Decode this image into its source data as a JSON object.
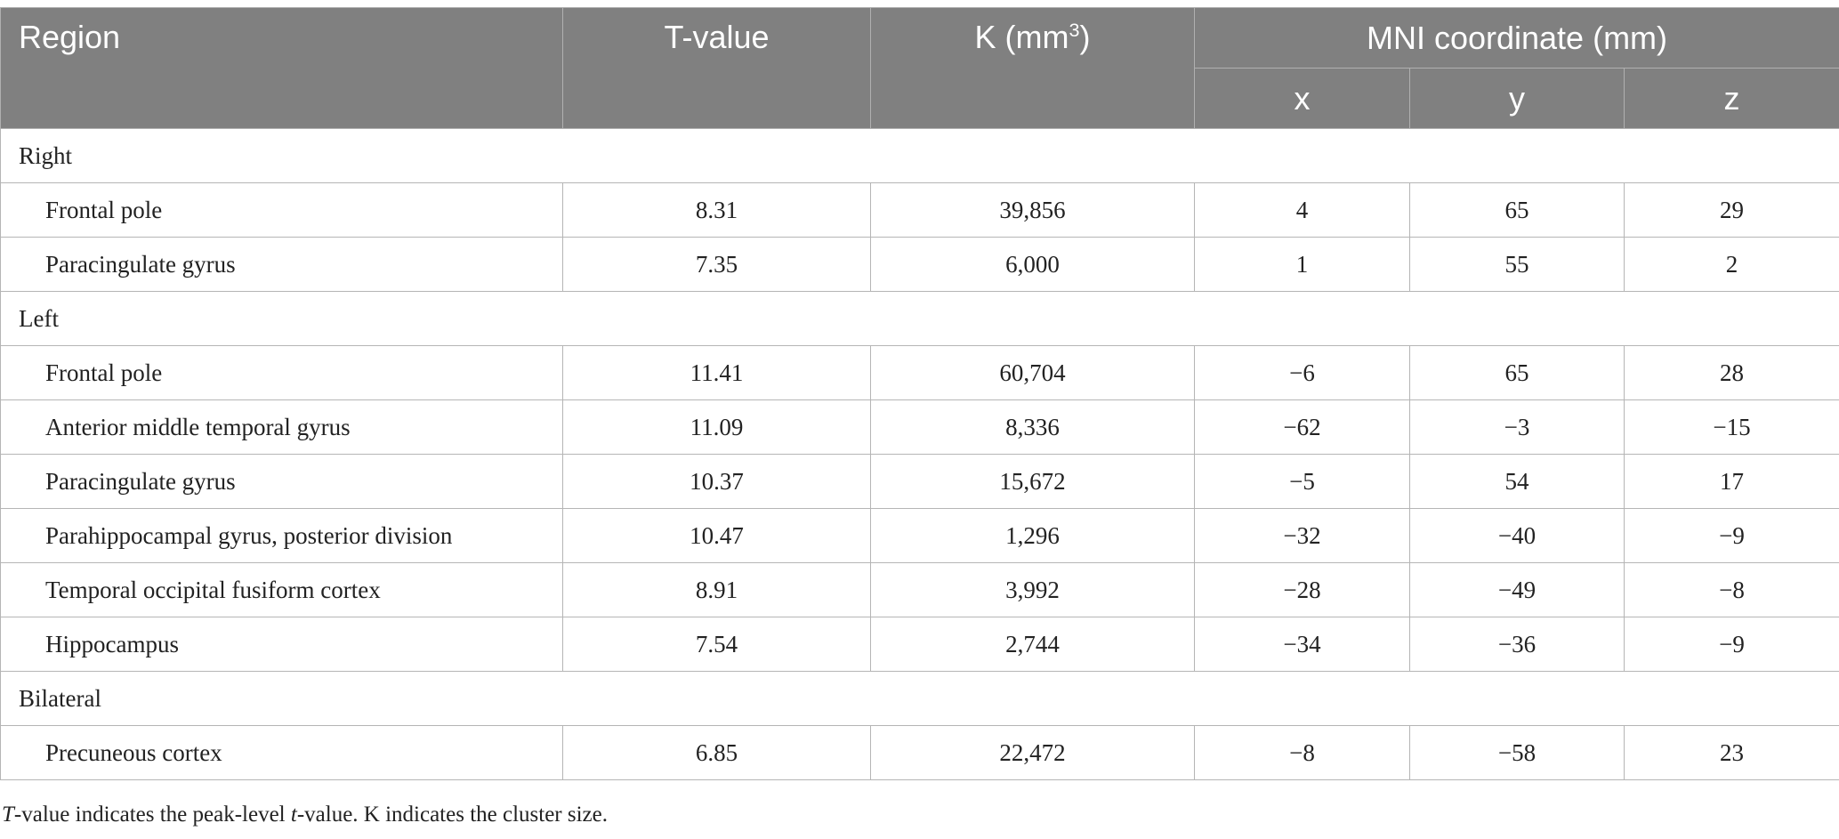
{
  "header": {
    "region": "Region",
    "tvalue": "T-value",
    "k_base": "K (mm",
    "k_sup": "3",
    "k_close": ")",
    "mni": "MNI coordinate (mm)",
    "x": "x",
    "y": "y",
    "z": "z"
  },
  "groups": [
    {
      "label": "Right",
      "rows": [
        {
          "region": "Frontal pole",
          "t": "8.31",
          "k": "39,856",
          "x": "4",
          "y": "65",
          "z": "29"
        },
        {
          "region": "Paracingulate gyrus",
          "t": "7.35",
          "k": "6,000",
          "x": "1",
          "y": "55",
          "z": "2"
        }
      ]
    },
    {
      "label": "Left",
      "rows": [
        {
          "region": "Frontal pole",
          "t": "11.41",
          "k": "60,704",
          "x": "−6",
          "y": "65",
          "z": "28"
        },
        {
          "region": "Anterior middle temporal gyrus",
          "t": "11.09",
          "k": "8,336",
          "x": "−62",
          "y": "−3",
          "z": "−15"
        },
        {
          "region": "Paracingulate gyrus",
          "t": "10.37",
          "k": "15,672",
          "x": "−5",
          "y": "54",
          "z": "17"
        },
        {
          "region": "Parahippocampal gyrus, posterior division",
          "t": "10.47",
          "k": "1,296",
          "x": "−32",
          "y": "−40",
          "z": "−9"
        },
        {
          "region": "Temporal occipital fusiform cortex",
          "t": "8.91",
          "k": "3,992",
          "x": "−28",
          "y": "−49",
          "z": "−8"
        },
        {
          "region": "Hippocampus",
          "t": "7.54",
          "k": "2,744",
          "x": "−34",
          "y": "−36",
          "z": "−9"
        }
      ]
    },
    {
      "label": "Bilateral",
      "rows": [
        {
          "region": "Precuneous cortex",
          "t": "6.85",
          "k": "22,472",
          "x": "−8",
          "y": "−58",
          "z": "23"
        }
      ]
    }
  ],
  "footnote": {
    "t1": "T",
    "t2": "-value indicates the peak-level ",
    "t3": "t",
    "t4": "-value. K indicates the cluster size."
  }
}
